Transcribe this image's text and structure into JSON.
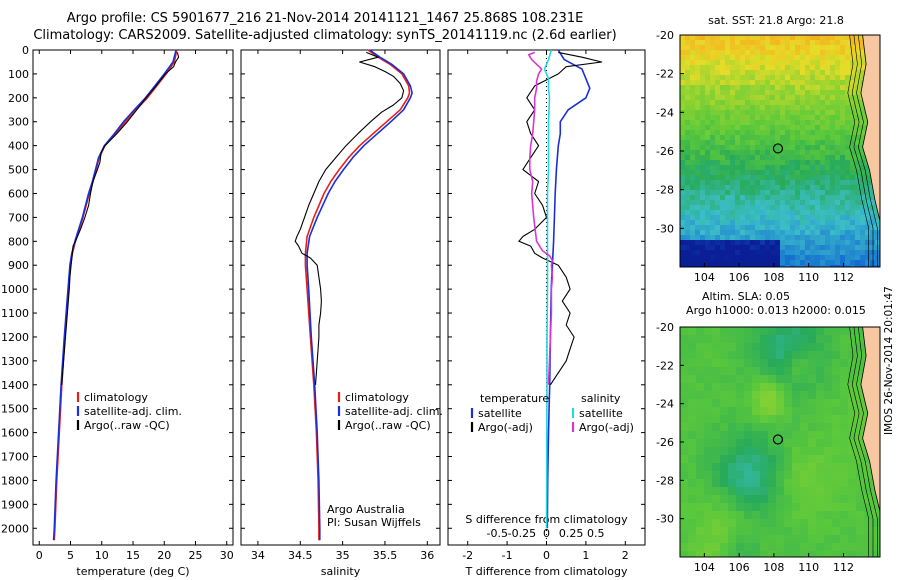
{
  "header": {
    "line1": "Argo profile: CS 5901677_216 21-Nov-2014 20141121_1467 25.868S 108.231E",
    "line2": "Climatology: CARS2009. Satellite-adjusted climatology: synTS_20141119.nc (2.6d earlier)"
  },
  "stamp": "IMOS 26-Nov-2014 20:01:47",
  "colors": {
    "climatology": "#e8201c",
    "satellite": "#1b2fd6",
    "argo": "#000000",
    "sat_salinity": "#25d8e0",
    "argo_salinity": "#d838d0"
  },
  "chart_data": [
    {
      "type": "line",
      "id": "temperature",
      "xlabel": "temperature (deg C)",
      "xlim": [
        -1,
        31
      ],
      "ylim": [
        2070,
        0
      ],
      "xticks": [
        "0",
        "5",
        "10",
        "15",
        "20",
        "25",
        "30"
      ],
      "yticks": [
        "0",
        "100",
        "200",
        "300",
        "400",
        "500",
        "600",
        "700",
        "800",
        "900",
        "1000",
        "1100",
        "1200",
        "1300",
        "1400",
        "1500",
        "1600",
        "1700",
        "1800",
        "1900",
        "2000"
      ],
      "legend": [
        {
          "label": "climatology",
          "color": "#e8201c"
        },
        {
          "label": "satellite-adj. clim.",
          "color": "#1b2fd6"
        },
        {
          "label": "Argo(..raw -QC)",
          "color": "#000000"
        }
      ],
      "series": [
        {
          "name": "climatology",
          "color": "#e8201c",
          "width": 1.6,
          "depth": [
            0,
            50,
            100,
            150,
            200,
            250,
            300,
            350,
            400,
            450,
            500,
            550,
            600,
            700,
            800,
            850,
            900,
            1000,
            1200,
            1400,
            1600,
            1800,
            2000,
            2050
          ],
          "values": [
            22,
            21.6,
            20.3,
            18.8,
            17.3,
            15.5,
            13.8,
            12.2,
            10.5,
            9.6,
            9.1,
            8.6,
            8.0,
            7.0,
            5.8,
            5.3,
            5.0,
            4.7,
            4.1,
            3.6,
            3.2,
            2.8,
            2.5,
            2.4
          ]
        },
        {
          "name": "satellite-adj. clim.",
          "color": "#1b2fd6",
          "width": 1.6,
          "depth": [
            0,
            50,
            100,
            150,
            200,
            250,
            300,
            350,
            400,
            450,
            500,
            550,
            600,
            700,
            800,
            850,
            900,
            1000,
            1200,
            1400,
            1600,
            1800,
            2000,
            2050
          ],
          "values": [
            21.9,
            21.4,
            20.0,
            18.5,
            17.0,
            15.2,
            13.5,
            12.0,
            10.4,
            9.5,
            9.0,
            8.5,
            7.9,
            6.9,
            5.7,
            5.2,
            4.9,
            4.6,
            4.0,
            3.5,
            3.1,
            2.7,
            2.4,
            2.3
          ]
        },
        {
          "name": "Argo(..raw -QC)",
          "color": "#000000",
          "width": 1.1,
          "depth": [
            10,
            30,
            50,
            70,
            100,
            150,
            200,
            250,
            300,
            350,
            400,
            430,
            470,
            500,
            550,
            600,
            650,
            700,
            750,
            800,
            820,
            850,
            900,
            950,
            1000,
            1100,
            1200,
            1300,
            1400
          ],
          "values": [
            22.1,
            22.3,
            21.8,
            21.5,
            20.2,
            18.7,
            17.1,
            15.6,
            14.1,
            12.4,
            10.5,
            9.9,
            9.7,
            9.3,
            8.6,
            8.2,
            7.9,
            7.3,
            6.6,
            5.8,
            5.4,
            5.3,
            5.1,
            4.9,
            4.8,
            4.5,
            4.2,
            3.9,
            3.6
          ]
        }
      ]
    },
    {
      "type": "line",
      "id": "salinity",
      "xlabel": "salinity",
      "xlim": [
        33.8,
        36.15
      ],
      "ylim": [
        2070,
        0
      ],
      "xticks": [
        "34",
        "34.5",
        "35",
        "35.5",
        "36"
      ],
      "legend": [
        {
          "label": "climatology",
          "color": "#e8201c"
        },
        {
          "label": "satellite-adj. clim.",
          "color": "#1b2fd6"
        },
        {
          "label": "Argo(..raw -QC)",
          "color": "#000000"
        }
      ],
      "annotation": [
        "Argo Australia",
        "PI: Susan Wijffels"
      ],
      "series": [
        {
          "name": "climatology",
          "color": "#e8201c",
          "width": 1.6,
          "depth": [
            0,
            30,
            60,
            100,
            150,
            180,
            200,
            250,
            300,
            350,
            400,
            450,
            500,
            550,
            600,
            700,
            780,
            850,
            900,
            1000,
            1200,
            1400,
            1600,
            1800,
            2000,
            2050
          ],
          "values": [
            35.3,
            35.42,
            35.56,
            35.7,
            35.78,
            35.79,
            35.77,
            35.68,
            35.52,
            35.36,
            35.2,
            35.07,
            34.96,
            34.86,
            34.78,
            34.66,
            34.58,
            34.56,
            34.56,
            34.58,
            34.62,
            34.66,
            34.69,
            34.71,
            34.72,
            34.72
          ]
        },
        {
          "name": "satellite-adj. clim.",
          "color": "#1b2fd6",
          "width": 1.6,
          "depth": [
            0,
            30,
            60,
            100,
            150,
            180,
            200,
            250,
            300,
            350,
            400,
            450,
            500,
            550,
            600,
            700,
            780,
            850,
            900,
            1000,
            1200,
            1400,
            1600,
            1800,
            2000,
            2050
          ],
          "values": [
            35.32,
            35.44,
            35.58,
            35.72,
            35.8,
            35.82,
            35.8,
            35.72,
            35.57,
            35.41,
            35.25,
            35.12,
            35.01,
            34.91,
            34.83,
            34.7,
            34.61,
            34.58,
            34.58,
            34.6,
            34.63,
            34.67,
            34.7,
            34.72,
            34.73,
            34.73
          ]
        },
        {
          "name": "Argo(..raw -QC)",
          "color": "#000000",
          "width": 1.1,
          "depth": [
            10,
            30,
            50,
            70,
            90,
            110,
            140,
            170,
            200,
            230,
            260,
            300,
            350,
            400,
            450,
            500,
            550,
            600,
            650,
            700,
            750,
            780,
            800,
            820,
            850,
            870,
            900,
            950,
            1000,
            1050,
            1100,
            1150,
            1200,
            1250,
            1300,
            1350,
            1400
          ],
          "values": [
            35.28,
            35.42,
            35.2,
            35.38,
            35.5,
            35.6,
            35.68,
            35.72,
            35.7,
            35.6,
            35.46,
            35.33,
            35.18,
            35.04,
            34.92,
            34.8,
            34.72,
            34.66,
            34.6,
            34.55,
            34.5,
            34.46,
            34.44,
            34.48,
            34.52,
            34.62,
            34.7,
            34.72,
            34.74,
            34.75,
            34.74,
            34.72,
            34.72,
            34.71,
            34.7,
            34.69,
            34.68
          ]
        }
      ]
    },
    {
      "type": "line",
      "id": "difference",
      "xlabel": "T difference from climatology",
      "xlabel_top": "S difference from climatology",
      "xlim": [
        -2.5,
        2.5
      ],
      "ylim": [
        2070,
        0
      ],
      "xticks": [
        "-2",
        "-1",
        "0",
        "1",
        "2"
      ],
      "xticks_s": [
        "-0.5",
        "-0.25",
        "0",
        "0.25",
        "0.5"
      ],
      "legend_cols": [
        {
          "title": "temperature",
          "items": [
            {
              "label": "satellite",
              "color": "#1b2fd6"
            },
            {
              "label": "Argo(-adj)",
              "color": "#000000"
            }
          ]
        },
        {
          "title": "salinity",
          "items": [
            {
              "label": "satellite",
              "color": "#25d8e0"
            },
            {
              "label": "Argo(-adj)",
              "color": "#d838d0"
            }
          ]
        }
      ],
      "series": [
        {
          "name": "satellite",
          "quantity": "temperature",
          "color": "#1b2fd6",
          "width": 1.6,
          "depth": [
            0,
            40,
            80,
            120,
            160,
            200,
            250,
            300,
            350,
            400,
            500,
            600,
            700,
            800,
            900,
            1000,
            1200,
            1400,
            1600,
            1800,
            2000
          ],
          "values": [
            0.3,
            0.45,
            0.9,
            1.0,
            1.1,
            1.0,
            0.55,
            0.35,
            0.35,
            0.3,
            0.25,
            0.22,
            0.2,
            0.18,
            0.15,
            0.12,
            0.1,
            0.08,
            0.05,
            0.03,
            0.02
          ]
        },
        {
          "name": "Argo(-adj)",
          "quantity": "temperature",
          "color": "#000000",
          "width": 1.1,
          "depth": [
            10,
            30,
            50,
            70,
            100,
            150,
            200,
            250,
            300,
            350,
            400,
            450,
            500,
            550,
            600,
            650,
            700,
            750,
            780,
            800,
            820,
            850,
            870,
            900,
            950,
            1000,
            1050,
            1100,
            1150,
            1200,
            1250,
            1300,
            1350,
            1400
          ],
          "values": [
            0.3,
            0.9,
            1.4,
            0.5,
            0.3,
            -0.3,
            -0.5,
            -0.3,
            -0.5,
            -0.4,
            -0.2,
            -0.4,
            -0.6,
            -0.2,
            -0.3,
            -0.1,
            0.0,
            -0.3,
            -0.6,
            -0.7,
            -0.4,
            -0.3,
            -0.1,
            0.3,
            0.5,
            0.6,
            0.4,
            0.6,
            0.5,
            0.7,
            0.6,
            0.5,
            0.3,
            0.1
          ]
        },
        {
          "name": "satellite",
          "quantity": "salinity",
          "color": "#25d8e0",
          "width": 1.6,
          "depth": [
            0,
            40,
            80,
            120,
            160,
            200,
            300,
            400,
            500,
            600,
            800,
            1000,
            1200,
            1400,
            1600,
            1800,
            2000
          ],
          "values": [
            0.05,
            0.02,
            -0.02,
            0.02,
            0.02,
            0.03,
            0.02,
            0.02,
            0.02,
            0.01,
            0.01,
            0.01,
            0.005,
            0.005,
            0.003,
            0.002,
            0.0
          ]
        },
        {
          "name": "Argo(-adj)",
          "quantity": "salinity",
          "color": "#d838d0",
          "width": 1.6,
          "depth": [
            10,
            20,
            40,
            60,
            80,
            100,
            130,
            160,
            200,
            250,
            300,
            350,
            400,
            450,
            500,
            550,
            600,
            700,
            800,
            840,
            860,
            880,
            900,
            950,
            1000,
            1100,
            1200,
            1300,
            1400
          ],
          "values": [
            -0.12,
            -0.18,
            -0.15,
            -0.1,
            -0.05,
            -0.08,
            -0.1,
            -0.1,
            -0.12,
            -0.12,
            -0.13,
            -0.14,
            -0.16,
            -0.17,
            -0.17,
            -0.14,
            -0.15,
            -0.13,
            -0.1,
            -0.04,
            0.03,
            0.06,
            0.05,
            0.06,
            0.05,
            0.05,
            0.04,
            0.03,
            0.02
          ]
        }
      ]
    },
    {
      "type": "heatmap",
      "id": "sst_map",
      "title": "sat. SST: 21.8  Argo: 21.8",
      "xticks": [
        "104",
        "106",
        "108",
        "110",
        "112"
      ],
      "yticks": [
        "-20",
        "-22",
        "-24",
        "-26",
        "-28",
        "-30"
      ],
      "xlim": [
        102.6,
        114.1
      ],
      "ylim": [
        -32,
        -20
      ],
      "argo_position": {
        "lon": 108.231,
        "lat": -25.868
      }
    },
    {
      "type": "heatmap",
      "id": "sla_map",
      "title_lines": [
        "Altim. SLA: 0.05",
        "Argo h1000: 0.013  h2000: 0.015"
      ],
      "xticks": [
        "104",
        "106",
        "108",
        "110",
        "112"
      ],
      "yticks": [
        "-20",
        "-22",
        "-24",
        "-26",
        "-28",
        "-30"
      ],
      "xlim": [
        102.6,
        114.1
      ],
      "ylim": [
        -32,
        -20
      ],
      "argo_position": {
        "lon": 108.231,
        "lat": -25.868
      }
    }
  ]
}
